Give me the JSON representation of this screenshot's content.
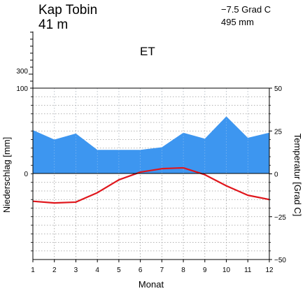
{
  "header": {
    "station": "Kap Tobin",
    "elevation": "41 m",
    "mean_temperature": "−7.5 Grad C",
    "annual_precipitation": "495 mm",
    "climate_class": "ET"
  },
  "chart_data": {
    "type": "line",
    "title": "",
    "xlabel": "Monat",
    "ylabel_left": "Niederschlag [mm]",
    "ylabel_right": "Temperatur [Grad C]",
    "categories": [
      "1",
      "2",
      "3",
      "4",
      "5",
      "6",
      "7",
      "8",
      "9",
      "10",
      "11",
      "12"
    ],
    "series": [
      {
        "name": "",
        "kind": "area",
        "axis": "left",
        "color": "#3d96f0",
        "values": [
          51,
          40,
          47,
          28,
          28,
          28,
          31,
          48,
          41,
          67,
          42,
          48
        ]
      },
      {
        "name": "",
        "kind": "line",
        "axis": "right",
        "color": "#e0161c",
        "values": [
          -16,
          -17,
          -16.5,
          -11,
          -3.5,
          1,
          3,
          3.5,
          -0.5,
          -7,
          -12.5,
          -15
        ]
      }
    ],
    "left_axis": {
      "ylim": [
        0,
        100
      ],
      "ticks": [
        "0",
        "100"
      ],
      "upper_ticks": [
        "300"
      ]
    },
    "right_axis": {
      "ylim": [
        -50,
        50
      ],
      "ticks": [
        "50",
        "25",
        "0",
        "−25",
        "−50"
      ]
    },
    "grid": true
  }
}
